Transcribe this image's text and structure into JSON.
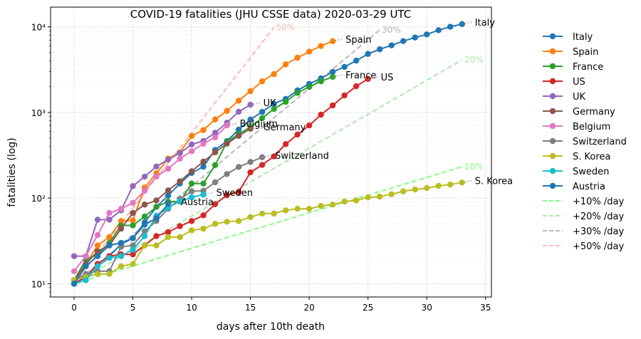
{
  "chart_data": {
    "type": "line",
    "title": "COVID-19 fatalities (JHU CSSE data) 2020-03-29 UTC",
    "xlabel": "days after 10th death",
    "ylabel": "fatalities (log)",
    "xlim": [
      -2,
      35.5
    ],
    "ylim": [
      7,
      17000
    ],
    "yscale": "log",
    "grid": true,
    "legend_position": "outside-right",
    "x_ticks": [
      0,
      5,
      10,
      15,
      20,
      25,
      30,
      35
    ],
    "x_tick_labels": [
      "0",
      "5",
      "10",
      "15",
      "20",
      "25",
      "30",
      "35"
    ],
    "y_ticks": [
      10,
      100,
      1000,
      10000
    ],
    "y_tick_labels": [
      "10¹",
      "10²",
      "10³",
      "10⁴"
    ],
    "series": [
      {
        "name": "Italy",
        "color": "#1f77b4",
        "label": "Italy",
        "x": [
          0,
          1,
          2,
          3,
          4,
          5,
          6,
          7,
          8,
          9,
          10,
          11,
          12,
          13,
          14,
          15,
          16,
          17,
          18,
          19,
          20,
          21,
          22,
          23,
          24,
          25,
          26,
          27,
          28,
          29,
          30,
          31,
          32,
          33
        ],
        "values": [
          10,
          12,
          17,
          21,
          29,
          34,
          52,
          79,
          107,
          148,
          197,
          233,
          366,
          463,
          631,
          827,
          1016,
          1266,
          1441,
          1809,
          2158,
          2503,
          2978,
          3405,
          4032,
          4825,
          5476,
          6077,
          6820,
          7503,
          8165,
          9134,
          10023,
          10779
        ]
      },
      {
        "name": "Spain",
        "color": "#ff7f0e",
        "label": "Spain",
        "x": [
          0,
          1,
          2,
          3,
          4,
          5,
          6,
          7,
          8,
          9,
          10,
          11,
          12,
          13,
          14,
          15,
          16,
          17,
          18,
          19,
          20,
          21,
          22
        ],
        "values": [
          10,
          17,
          28,
          35,
          54,
          55,
          133,
          195,
          289,
          342,
          533,
          623,
          830,
          1043,
          1375,
          1772,
          2311,
          2808,
          3647,
          4365,
          5138,
          5982,
          6803
        ]
      },
      {
        "name": "France",
        "color": "#2ca02c",
        "label": "France",
        "x": [
          0,
          1,
          2,
          3,
          4,
          5,
          6,
          7,
          8,
          9,
          10,
          11,
          12,
          13,
          14,
          15,
          16,
          17,
          18,
          19,
          20,
          21,
          22
        ],
        "values": [
          11,
          19,
          22,
          30,
          48,
          48,
          61,
          79,
          91,
          91,
          148,
          148,
          243,
          450,
          562,
          674,
          860,
          1100,
          1331,
          1696,
          1995,
          2314,
          2606
        ]
      },
      {
        "name": "US",
        "color": "#d62728",
        "label": "US",
        "x": [
          0,
          1,
          2,
          3,
          4,
          5,
          6,
          7,
          8,
          9,
          10,
          11,
          12,
          13,
          14,
          15,
          16,
          17,
          18,
          19,
          20,
          21,
          22,
          23,
          24,
          25
        ],
        "values": [
          10,
          12,
          17,
          21,
          22,
          22,
          28,
          36,
          40,
          47,
          54,
          63,
          85,
          108,
          118,
          200,
          244,
          307,
          427,
          552,
          706,
          943,
          1209,
          1581,
          2026,
          2467
        ]
      },
      {
        "name": "UK",
        "color": "#9467bd",
        "label": "UK",
        "x": [
          0,
          1,
          2,
          3,
          4,
          5,
          6,
          7,
          8,
          9,
          10,
          11,
          12,
          13,
          14,
          15
        ],
        "values": [
          21,
          21,
          56,
          56,
          72,
          138,
          178,
          234,
          282,
          336,
          423,
          466,
          580,
          761,
          1021,
          1231
        ]
      },
      {
        "name": "Germany",
        "color": "#8c564b",
        "label": "Germany",
        "x": [
          0,
          1,
          2,
          3,
          4,
          5,
          6,
          7,
          8,
          9,
          10,
          11,
          12,
          13,
          14,
          15
        ],
        "values": [
          11,
          17,
          24,
          28,
          44,
          67,
          84,
          94,
          123,
          157,
          206,
          267,
          342,
          433,
          533,
          645
        ]
      },
      {
        "name": "Belgium",
        "color": "#e377c2",
        "label": "Belgium",
        "x": [
          0,
          1,
          2,
          3,
          4,
          5,
          6,
          7,
          8,
          9,
          10,
          11,
          12,
          13
        ],
        "values": [
          14,
          21,
          37,
          67,
          75,
          88,
          122,
          178,
          220,
          289,
          353,
          431,
          513,
          705
        ]
      },
      {
        "name": "Switzerland",
        "color": "#7f7f7f",
        "label": "Switzerland",
        "x": [
          0,
          1,
          2,
          3,
          4,
          5,
          6,
          7,
          8,
          9,
          10,
          11,
          12,
          13,
          14,
          15,
          16
        ],
        "values": [
          11,
          13,
          14,
          14,
          27,
          28,
          41,
          54,
          75,
          98,
          120,
          122,
          153,
          191,
          231,
          264,
          300
        ]
      },
      {
        "name": "S. Korea",
        "color": "#bcbd22",
        "label": "S. Korea",
        "x": [
          0,
          1,
          2,
          3,
          4,
          5,
          6,
          7,
          8,
          9,
          10,
          11,
          12,
          13,
          14,
          15,
          16,
          17,
          18,
          19,
          20,
          21,
          22,
          23,
          24,
          25,
          26,
          27,
          28,
          29,
          30,
          31,
          32,
          33
        ],
        "values": [
          11,
          12,
          13,
          13,
          16,
          17,
          28,
          28,
          35,
          35,
          42,
          44,
          50,
          53,
          54,
          60,
          66,
          66,
          72,
          75,
          75,
          81,
          84,
          91,
          94,
          102,
          104,
          111,
          120,
          126,
          131,
          139,
          144,
          152
        ]
      },
      {
        "name": "Sweden",
        "color": "#17becf",
        "label": "Sweden",
        "x": [
          0,
          1,
          2,
          3,
          4,
          5,
          6,
          7,
          8,
          9,
          10,
          11
        ],
        "values": [
          10,
          11,
          16,
          20,
          21,
          25,
          36,
          62,
          77,
          92,
          102,
          110
        ]
      },
      {
        "name": "Austria",
        "color": "#1f77b4",
        "label": "Austria",
        "x": [
          0,
          1,
          2,
          3,
          4,
          5,
          6,
          7,
          8
        ],
        "values": [
          10,
          16,
          21,
          28,
          30,
          34,
          49,
          58,
          86
        ]
      }
    ],
    "reference_lines": [
      {
        "name": "+10% /day",
        "color": "#80ff80",
        "rate": 0.1,
        "x_end": 33,
        "label": "10%"
      },
      {
        "name": "+20% /day",
        "color": "#b0e6b0",
        "rate": 0.2,
        "x_end": 33,
        "label": "20%"
      },
      {
        "name": "+30% /day",
        "color": "#b8b8b8",
        "rate": 0.3,
        "x_end": 26,
        "label": "30%"
      },
      {
        "name": "+50% /day",
        "color": "#ffb8b8",
        "rate": 0.5,
        "x_end": 17,
        "label": "50%"
      }
    ]
  }
}
